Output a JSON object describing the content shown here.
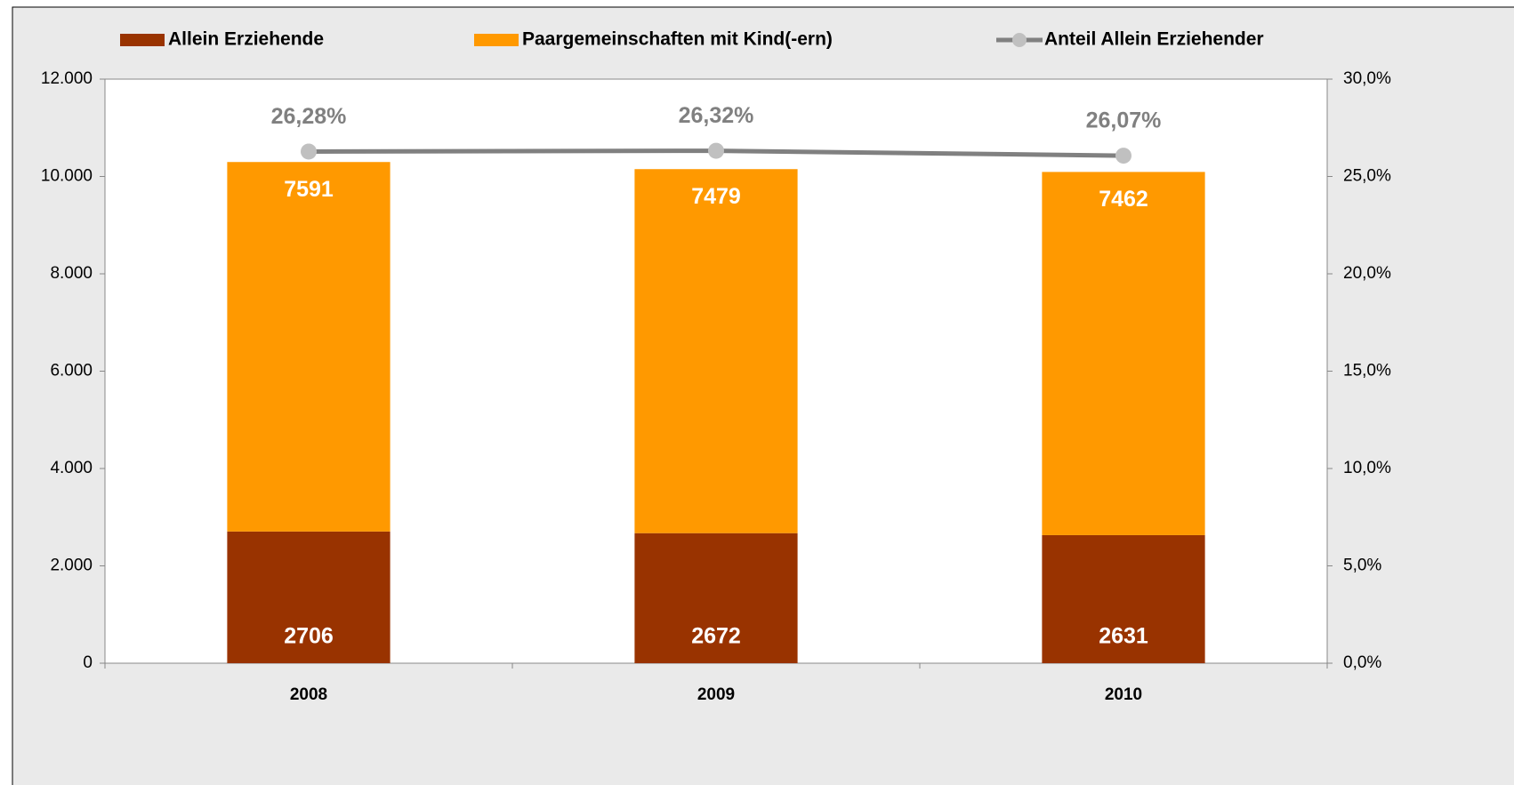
{
  "chart_data": {
    "type": "bar",
    "categories": [
      "2008",
      "2009",
      "2010"
    ],
    "stacked": true,
    "series": [
      {
        "name": "Allein Erziehende",
        "color": "#993300",
        "values": [
          2706,
          2672,
          2631
        ]
      },
      {
        "name": "Paargemeinschaften mit Kind(-ern)",
        "color": "#ff9900",
        "values": [
          7591,
          7479,
          7462
        ]
      },
      {
        "name": "Anteil Allein Erziehender",
        "type": "line",
        "axis": "y2",
        "color": "#808080",
        "marker_color": "#c0c0c0",
        "values": [
          26.28,
          26.32,
          26.07
        ],
        "value_labels": [
          "26,28%",
          "26,32%",
          "26,07%"
        ]
      }
    ],
    "ylim": [
      0,
      12000
    ],
    "yticks": [
      0,
      {
        "value": 2000,
        "label": "2.000"
      },
      {
        "value": 4000,
        "label": "4.000"
      },
      {
        "value": 6000,
        "label": "6.000"
      },
      {
        "value": 8000,
        "label": "8.000"
      },
      {
        "value": 10000,
        "label": "10.000"
      },
      {
        "value": 12000,
        "label": "12.000"
      }
    ],
    "y2lim": [
      0,
      30
    ],
    "y2ticks": [
      {
        "value": 0,
        "label": "0,0%"
      },
      {
        "value": 5,
        "label": "5,0%"
      },
      {
        "value": 10,
        "label": "10,0%"
      },
      {
        "value": 15,
        "label": "15,0%"
      },
      {
        "value": 20,
        "label": "20,0%"
      },
      {
        "value": 25,
        "label": "25,0%"
      },
      {
        "value": 30,
        "label": "30,0%"
      }
    ],
    "legend": "top"
  }
}
